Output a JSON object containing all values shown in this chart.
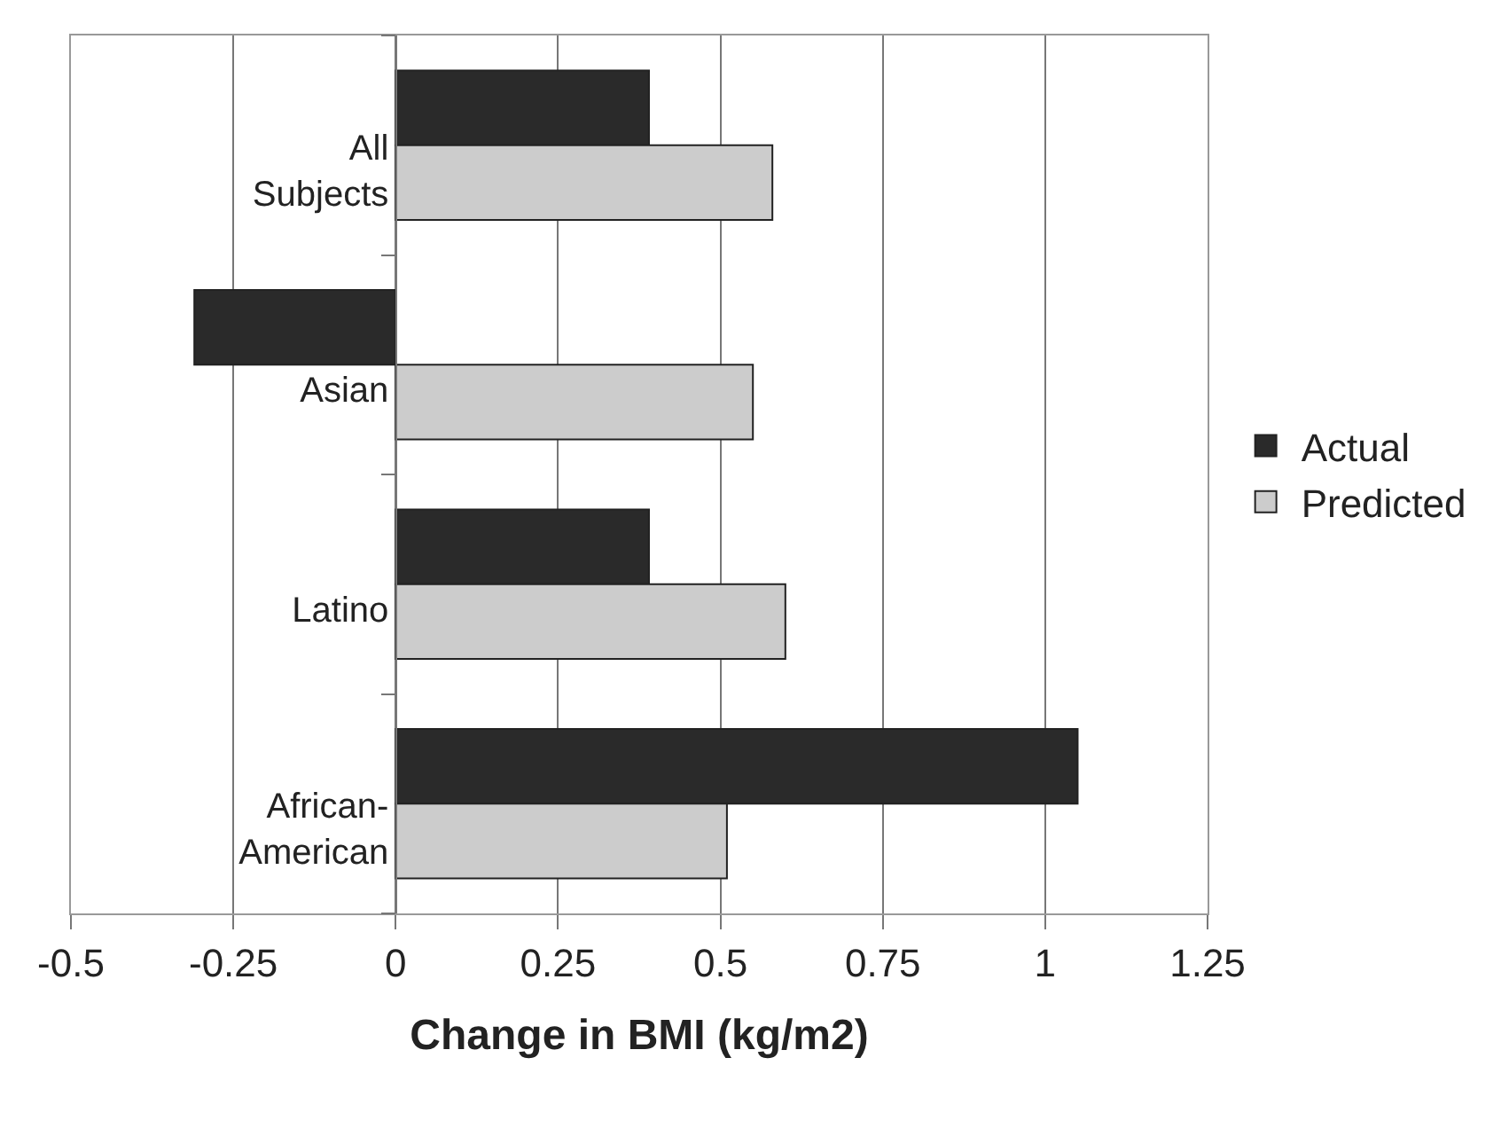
{
  "chart_data": {
    "type": "bar",
    "orientation": "horizontal",
    "xlabel": "Change in BMI (kg/m2)",
    "categories": [
      "All Subjects",
      "Asian",
      "Latino",
      "African-American"
    ],
    "series": [
      {
        "name": "Actual",
        "color": "#2a2a2a",
        "values": [
          0.39,
          -0.31,
          0.39,
          1.05
        ]
      },
      {
        "name": "Predicted",
        "color": "#cccccc",
        "values": [
          0.58,
          0.55,
          0.6,
          0.51
        ]
      }
    ],
    "xlim": [
      -0.5,
      1.25
    ],
    "xticks": [
      -0.5,
      -0.25,
      0,
      0.25,
      0.5,
      0.75,
      1,
      1.25
    ],
    "grid": "x",
    "legend": "right"
  }
}
